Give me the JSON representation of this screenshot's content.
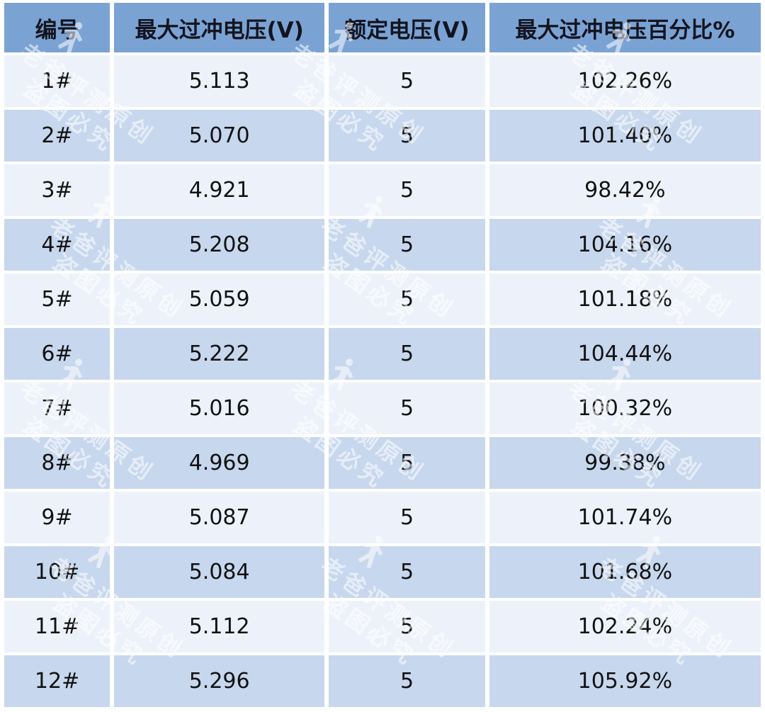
{
  "colors": {
    "header_bg": "#7aa3d4",
    "row_light": "#edf2fa",
    "row_dark": "#c7d7ed",
    "header_text": "#14141f",
    "cell_text": "#121212",
    "watermark": "#ffffff"
  },
  "table": {
    "headers": [
      "编号",
      "最大过冲电压(V)",
      "额定电压(V)",
      "最大过冲电压百分比%"
    ],
    "rows": [
      [
        "1#",
        "5.113",
        "5",
        "102.26%"
      ],
      [
        "2#",
        "5.070",
        "5",
        "101.40%"
      ],
      [
        "3#",
        "4.921",
        "5",
        "98.42%"
      ],
      [
        "4#",
        "5.208",
        "5",
        "104.16%"
      ],
      [
        "5#",
        "5.059",
        "5",
        "101.18%"
      ],
      [
        "6#",
        "5.222",
        "5",
        "104.44%"
      ],
      [
        "7#",
        "5.016",
        "5",
        "100.32%"
      ],
      [
        "8#",
        "4.969",
        "5",
        "99.38%"
      ],
      [
        "9#",
        "5.087",
        "5",
        "101.74%"
      ],
      [
        "10#",
        "5.084",
        "5",
        "101.68%"
      ],
      [
        "11#",
        "5.112",
        "5",
        "102.24%"
      ],
      [
        "12#",
        "5.296",
        "5",
        "105.92%"
      ]
    ]
  },
  "watermark": {
    "line1": "老爸评测原创",
    "line2": "盗图必究"
  },
  "chart_data": {
    "type": "table",
    "title": "",
    "columns": [
      "编号",
      "最大过冲电压(V)",
      "额定电压(V)",
      "最大过冲电压百分比%"
    ],
    "rows": [
      {
        "编号": "1#",
        "最大过冲电压(V)": 5.113,
        "额定电压(V)": 5,
        "最大过冲电压百分比%": "102.26%"
      },
      {
        "编号": "2#",
        "最大过冲电压(V)": 5.07,
        "额定电压(V)": 5,
        "最大过冲电压百分比%": "101.40%"
      },
      {
        "编号": "3#",
        "最大过冲电压(V)": 4.921,
        "额定电压(V)": 5,
        "最大过冲电压百分比%": "98.42%"
      },
      {
        "编号": "4#",
        "最大过冲电压(V)": 5.208,
        "额定电压(V)": 5,
        "最大过冲电压百分比%": "104.16%"
      },
      {
        "编号": "5#",
        "最大过冲电压(V)": 5.059,
        "额定电压(V)": 5,
        "最大过冲电压百分比%": "101.18%"
      },
      {
        "编号": "6#",
        "最大过冲电压(V)": 5.222,
        "额定电压(V)": 5,
        "最大过冲电压百分比%": "104.44%"
      },
      {
        "编号": "7#",
        "最大过冲电压(V)": 5.016,
        "额定电压(V)": 5,
        "最大过冲电压百分比%": "100.32%"
      },
      {
        "编号": "8#",
        "最大过冲电压(V)": 4.969,
        "额定电压(V)": 5,
        "最大过冲电压百分比%": "99.38%"
      },
      {
        "编号": "9#",
        "最大过冲电压(V)": 5.087,
        "额定电压(V)": 5,
        "最大过冲电压百分比%": "101.74%"
      },
      {
        "编号": "10#",
        "最大过冲电压(V)": 5.084,
        "额定电压(V)": 5,
        "最大过冲电压百分比%": "101.68%"
      },
      {
        "编号": "11#",
        "最大过冲电压(V)": 5.112,
        "额定电压(V)": 5,
        "最大过冲电压百分比%": "102.24%"
      },
      {
        "编号": "12#",
        "最大过冲电压(V)": 5.296,
        "额定电压(V)": 5,
        "最大过冲电压百分比%": "105.92%"
      }
    ]
  }
}
